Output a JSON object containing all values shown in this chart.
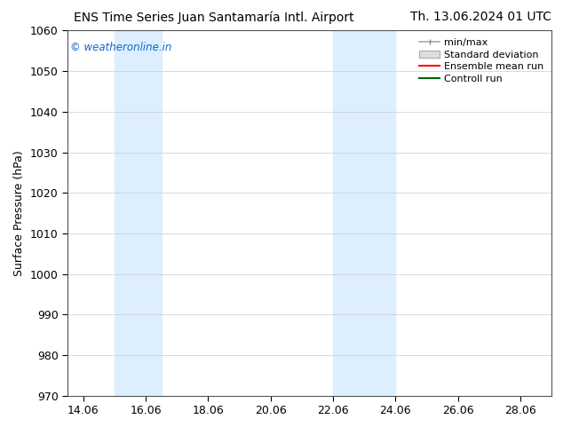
{
  "title_left": "ENS Time Series Juan Santamaría Intl. Airport",
  "title_right": "Th. 13.06.2024 01 UTC",
  "ylabel": "Surface Pressure (hPa)",
  "ylim": [
    970,
    1060
  ],
  "yticks": [
    970,
    980,
    990,
    1000,
    1010,
    1020,
    1030,
    1040,
    1050,
    1060
  ],
  "xlim_start": 13.5,
  "xlim_end": 29.0,
  "xtick_labels": [
    "14.06",
    "16.06",
    "18.06",
    "20.06",
    "22.06",
    "24.06",
    "26.06",
    "28.06"
  ],
  "xtick_positions": [
    14.0,
    16.0,
    18.0,
    20.0,
    22.0,
    24.0,
    26.0,
    28.0
  ],
  "shaded_bands": [
    {
      "x_start": 15.0,
      "x_end": 16.5,
      "color": "#ddeeff"
    },
    {
      "x_start": 22.0,
      "x_end": 24.0,
      "color": "#ddeeff"
    }
  ],
  "watermark_text": "© weatheronline.in",
  "watermark_color": "#1166cc",
  "bg_color": "#ffffff",
  "plot_bg_color": "#ffffff",
  "grid_color": "#cccccc",
  "title_fontsize": 10,
  "tick_fontsize": 9,
  "legend_fontsize": 8,
  "ylabel_fontsize": 9
}
